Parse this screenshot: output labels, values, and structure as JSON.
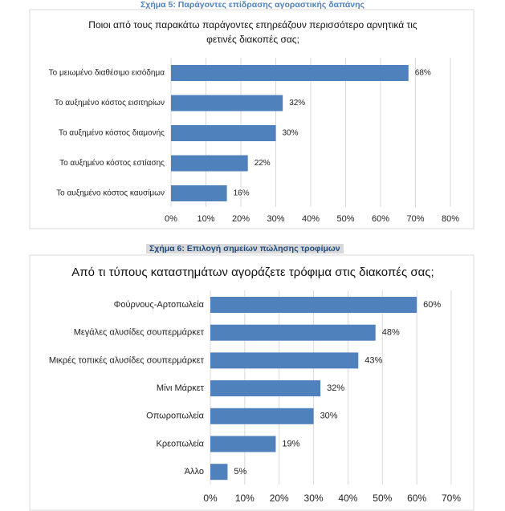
{
  "chart_data": [
    {
      "type": "bar",
      "orientation": "horizontal",
      "caption": "Σχήμα 5: Παράγοντες επίδρασης αγοραστικής δαπάνης",
      "title": "Ποιοι από τους παρακάτω παράγοντες επηρεάζουν περισσότερο αρνητικά τις φετινές διακοπές σας;",
      "categories": [
        "Το μειωμένο διαθέσιμο εισόδημα",
        "Το αυξημένο κόστος εισιτηρίων",
        "Το αυξημένο κόστος διαμονής",
        "Το αυξημένο κόστος εστίασης",
        "Το αυξημένο κόστος καυσίμων"
      ],
      "values": [
        68,
        32,
        30,
        22,
        16
      ],
      "value_labels": [
        "68%",
        "32%",
        "30%",
        "22%",
        "16%"
      ],
      "color": "#4f81bd",
      "xlim": [
        0,
        80
      ],
      "xticks": [
        {
          "value": 0,
          "label": "0%"
        },
        {
          "value": 10,
          "label": "10%"
        },
        {
          "value": 20,
          "label": "20%"
        },
        {
          "value": 30,
          "label": "30%"
        },
        {
          "value": 40,
          "label": "40%"
        },
        {
          "value": 50,
          "label": "50%"
        },
        {
          "value": 60,
          "label": "60%"
        },
        {
          "value": 70,
          "label": "70%"
        },
        {
          "value": 80,
          "label": "80%"
        }
      ],
      "grid": true
    },
    {
      "type": "bar",
      "orientation": "horizontal",
      "caption": "Σχήμα 6: Επιλογή σημείων πώλησης τροφίμων",
      "title": "Από τι τύπους καταστημάτων αγοράζετε τρόφιμα στις διακοπές σας;",
      "categories": [
        "Φούρνους-Αρτοπωλεία",
        "Μεγάλες αλυσίδες σουπερμάρκετ",
        "Μικρές τοπικές αλυσίδες σουπερμάρκετ",
        "Μίνι Μάρκετ",
        "Οπωροπωλεία",
        "Κρεοπωλεία",
        "Άλλο"
      ],
      "values": [
        60,
        48,
        43,
        32,
        30,
        19,
        5
      ],
      "value_labels": [
        "60%",
        "48%",
        "43%",
        "32%",
        "30%",
        "19%",
        "5%"
      ],
      "color": "#4f81bd",
      "xlim": [
        0,
        70
      ],
      "xticks": [
        {
          "value": 0,
          "label": "0%"
        },
        {
          "value": 10,
          "label": "10%"
        },
        {
          "value": 20,
          "label": "20%"
        },
        {
          "value": 30,
          "label": "30%"
        },
        {
          "value": 40,
          "label": "40%"
        },
        {
          "value": 50,
          "label": "50%"
        },
        {
          "value": 60,
          "label": "60%"
        },
        {
          "value": 70,
          "label": "70%"
        }
      ],
      "grid": true
    }
  ]
}
